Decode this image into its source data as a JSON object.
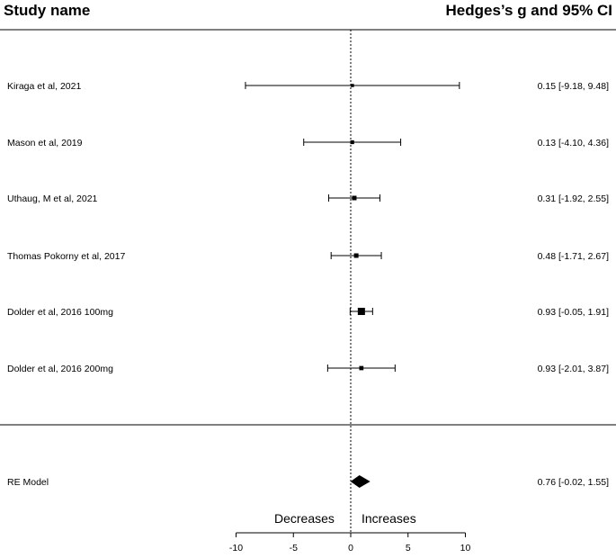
{
  "chart_data": {
    "type": "forest",
    "column_headers": {
      "left": "Study name",
      "right": "Hedges’s g and 95% CI"
    },
    "xlim": [
      -10,
      10
    ],
    "xticks": [
      -10,
      -5,
      0,
      5,
      10
    ],
    "reference_line_x": 0,
    "direction_labels": {
      "left": "Decreases",
      "right": "Increases"
    },
    "studies": [
      {
        "name": "Kiraga et al, 2021",
        "estimate": 0.15,
        "lower": -9.18,
        "upper": 9.48,
        "label": "0.15 [-9.18, 9.48]",
        "weight": 1
      },
      {
        "name": "Mason et al, 2019",
        "estimate": 0.13,
        "lower": -4.1,
        "upper": 4.36,
        "label": "0.13 [-4.10, 4.36]",
        "weight": 1.5
      },
      {
        "name": "Uthaug, M et al, 2021",
        "estimate": 0.31,
        "lower": -1.92,
        "upper": 2.55,
        "label": "0.31 [-1.92, 2.55]",
        "weight": 2
      },
      {
        "name": "Thomas Pokorny et al, 2017",
        "estimate": 0.48,
        "lower": -1.71,
        "upper": 2.67,
        "label": "0.48 [-1.71, 2.67]",
        "weight": 2
      },
      {
        "name": "Dolder et al, 2016 100mg",
        "estimate": 0.93,
        "lower": -0.05,
        "upper": 1.91,
        "label": "0.93 [-0.05, 1.91]",
        "weight": 4
      },
      {
        "name": "Dolder et al, 2016 200mg",
        "estimate": 0.93,
        "lower": -2.01,
        "upper": 3.87,
        "label": "0.93 [-2.01, 3.87]",
        "weight": 1.8
      }
    ],
    "summary": {
      "name": "RE Model",
      "estimate": 0.76,
      "lower": -0.02,
      "upper": 1.55,
      "label": "0.76 [-0.02, 1.55]"
    }
  }
}
